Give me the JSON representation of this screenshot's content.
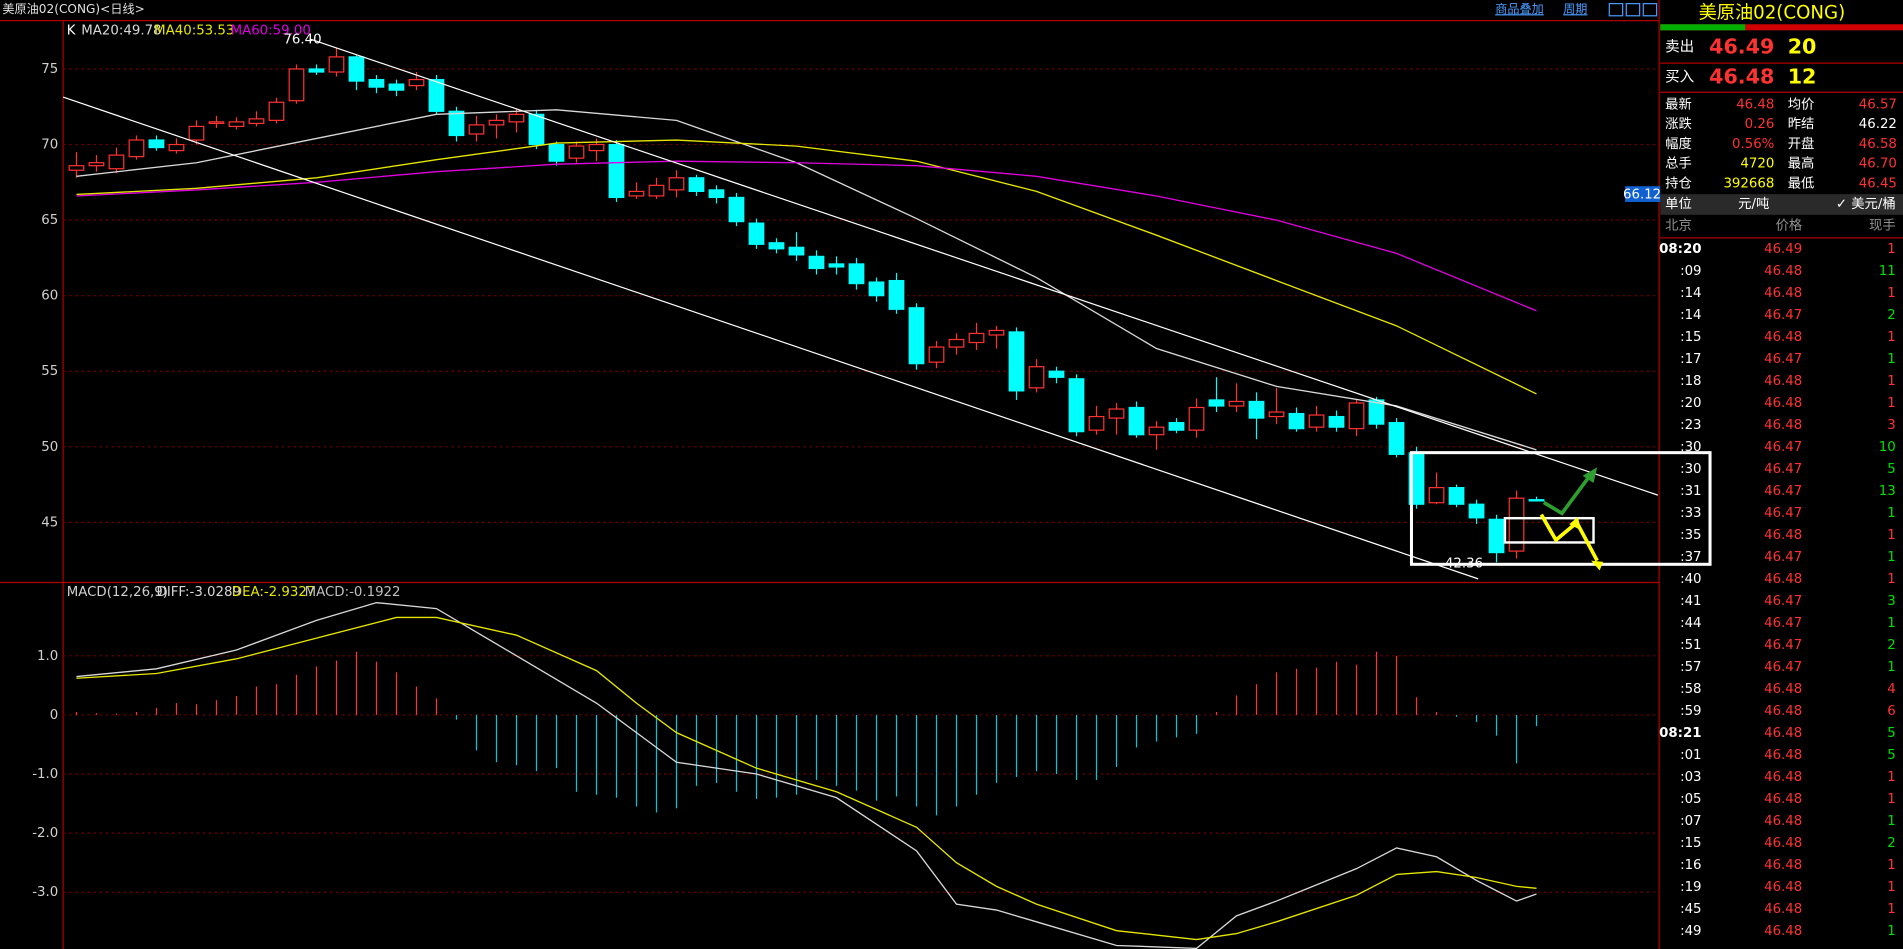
{
  "header": {
    "title": "美原油02(CONG)<日线>",
    "links": [
      "商品叠加",
      "周期"
    ]
  },
  "chart_data": [
    {
      "type": "candlestick",
      "label": "K",
      "up_color": "#ff3232",
      "down_color": "#00ffff",
      "open": [
        68.3,
        68.6,
        68.4,
        69.2,
        70.3,
        69.6,
        70.3,
        71.4,
        71.2,
        71.4,
        71.6,
        72.9,
        75.0,
        74.8,
        75.8,
        74.3,
        74.0,
        73.9,
        74.3,
        72.2,
        70.7,
        71.3,
        71.5,
        72.0,
        70.0,
        69.1,
        69.6,
        70.0,
        66.6,
        66.6,
        67.0,
        67.8,
        67.0,
        66.5,
        64.8,
        63.5,
        63.2,
        62.6,
        62.1,
        62.1,
        60.9,
        61.0,
        59.2,
        55.6,
        56.6,
        56.9,
        57.4,
        57.6,
        53.9,
        55.0,
        54.5,
        51.1,
        51.9,
        52.6,
        50.8,
        51.6,
        51.1,
        53.1,
        52.7,
        53.0,
        52.0,
        52.2,
        51.3,
        52.0,
        51.2,
        53.1,
        51.6,
        49.6,
        46.3,
        47.3,
        46.2,
        45.2,
        43.1,
        46.5
      ],
      "high": [
        69.5,
        69.3,
        69.8,
        70.6,
        70.6,
        70.4,
        71.6,
        71.9,
        71.8,
        72.2,
        73.1,
        75.3,
        75.3,
        76.4,
        75.9,
        74.6,
        74.3,
        74.8,
        74.6,
        72.5,
        71.9,
        72.0,
        72.4,
        72.3,
        70.2,
        70.2,
        70.4,
        70.3,
        67.5,
        67.8,
        68.3,
        68.0,
        67.3,
        66.8,
        65.1,
        63.8,
        64.2,
        63.0,
        62.6,
        62.5,
        61.2,
        61.5,
        59.5,
        57.0,
        57.5,
        58.2,
        58.0,
        57.9,
        55.8,
        55.3,
        54.8,
        52.7,
        52.9,
        53.0,
        51.7,
        51.9,
        53.2,
        54.6,
        54.2,
        53.6,
        53.9,
        52.6,
        52.7,
        52.4,
        53.1,
        53.3,
        51.9,
        50.0,
        48.3,
        47.5,
        46.5,
        45.5,
        47.1,
        46.7
      ],
      "low": [
        67.8,
        68.2,
        68.1,
        69.0,
        69.6,
        69.4,
        70.0,
        71.1,
        71.0,
        71.2,
        71.4,
        72.7,
        74.6,
        74.5,
        73.6,
        73.4,
        73.2,
        73.6,
        72.0,
        70.2,
        70.2,
        70.4,
        70.8,
        69.7,
        68.6,
        68.8,
        68.9,
        66.2,
        66.4,
        66.4,
        66.5,
        66.6,
        66.1,
        64.6,
        63.1,
        62.8,
        62.3,
        61.4,
        61.4,
        60.4,
        59.6,
        58.8,
        55.1,
        55.2,
        56.1,
        56.4,
        56.5,
        53.1,
        53.6,
        54.2,
        50.7,
        50.8,
        50.8,
        50.6,
        49.8,
        50.9,
        50.6,
        52.3,
        52.3,
        50.5,
        51.5,
        51.0,
        51.0,
        51.0,
        50.7,
        51.2,
        49.3,
        45.9,
        46.2,
        46.0,
        44.9,
        42.36,
        42.6,
        46.4
      ],
      "close": [
        68.6,
        68.8,
        69.3,
        70.3,
        69.8,
        70.0,
        71.2,
        71.5,
        71.5,
        71.7,
        72.8,
        75.0,
        74.8,
        75.8,
        74.2,
        73.8,
        73.6,
        74.3,
        72.2,
        70.6,
        71.3,
        71.6,
        72.0,
        70.0,
        68.9,
        69.9,
        70.0,
        66.5,
        66.9,
        67.3,
        67.8,
        66.9,
        66.5,
        64.9,
        63.4,
        63.1,
        62.7,
        61.8,
        61.9,
        60.8,
        60.0,
        59.1,
        55.5,
        56.6,
        57.1,
        57.5,
        57.7,
        53.7,
        55.3,
        54.6,
        51.0,
        52.0,
        52.5,
        50.8,
        51.3,
        51.1,
        52.6,
        52.7,
        53.0,
        51.9,
        52.3,
        51.2,
        52.1,
        51.3,
        52.9,
        51.5,
        49.5,
        46.2,
        47.3,
        46.2,
        45.3,
        43.0,
        46.6,
        46.48
      ],
      "series": [
        {
          "label": "MA20:49.78",
          "color": "#d8d8d8",
          "x": [
            0,
            6,
            12,
            18,
            24,
            30,
            36,
            42,
            48,
            54,
            60,
            66,
            73
          ],
          "values": [
            67.9,
            68.8,
            70.4,
            72.0,
            72.3,
            71.6,
            68.8,
            65.1,
            61.2,
            56.5,
            54.0,
            52.7,
            49.8
          ]
        },
        {
          "label": "MA40:53.53",
          "color": "#e6e600",
          "x": [
            0,
            6,
            12,
            18,
            24,
            30,
            36,
            42,
            48,
            54,
            60,
            66,
            73
          ],
          "values": [
            66.7,
            67.1,
            67.8,
            69.0,
            70.1,
            70.3,
            69.9,
            68.9,
            66.9,
            64.0,
            61.0,
            58.0,
            53.5
          ]
        },
        {
          "label": "MA60:59.00",
          "color": "#e000e0",
          "x": [
            0,
            6,
            12,
            18,
            24,
            30,
            36,
            42,
            48,
            54,
            60,
            66,
            73
          ],
          "values": [
            66.6,
            67.0,
            67.5,
            68.2,
            68.7,
            68.9,
            68.8,
            68.6,
            67.9,
            66.6,
            65.0,
            62.8,
            59.0
          ]
        }
      ],
      "annotations": [
        {
          "label": "76.40",
          "value": 76.4
        },
        {
          "label": "42.36",
          "value": 42.36
        }
      ],
      "price_badge": {
        "label": "66.12",
        "value": 66.12
      },
      "ylim": [
        41.1,
        78.2
      ],
      "yticks": [
        75,
        70,
        65,
        60,
        55,
        50,
        45
      ],
      "grid": true
    },
    {
      "type": "macd",
      "label": "MACD(12,26,9)",
      "diff_label": "DIFF:-3.0289",
      "dea_label": "DEA:-2.9327",
      "macd_label": "MACD:-0.1922",
      "histogram": [
        0.05,
        0.03,
        0.02,
        0.05,
        0.12,
        0.2,
        0.18,
        0.25,
        0.32,
        0.48,
        0.52,
        0.68,
        0.82,
        0.92,
        1.07,
        0.9,
        0.72,
        0.48,
        0.28,
        -0.08,
        -0.6,
        -0.8,
        -0.85,
        -0.95,
        -0.9,
        -1.3,
        -1.35,
        -1.4,
        -1.55,
        -1.65,
        -1.58,
        -1.2,
        -1.15,
        -1.3,
        -1.42,
        -1.4,
        -1.35,
        -1.1,
        -1.2,
        -1.28,
        -1.45,
        -1.38,
        -1.55,
        -1.7,
        -1.55,
        -1.35,
        -1.15,
        -1.05,
        -0.95,
        -1.0,
        -1.1,
        -1.1,
        -0.88,
        -0.55,
        -0.45,
        -0.38,
        -0.32,
        0.05,
        0.33,
        0.52,
        0.72,
        0.78,
        0.8,
        0.9,
        0.85,
        1.07,
        1.0,
        0.3,
        0.05,
        -0.03,
        -0.12,
        -0.35,
        -0.82,
        -0.19
      ],
      "up_color": "#ff3232",
      "down_color": "#00c8d8",
      "series": [
        {
          "color": "#d8d8d8",
          "x": [
            0,
            4,
            8,
            12,
            15,
            18,
            22,
            26,
            28,
            30,
            34,
            38,
            42,
            44,
            46,
            48,
            52,
            56,
            58,
            60,
            64,
            66,
            68,
            70,
            72,
            73
          ],
          "values": [
            0.65,
            0.78,
            1.1,
            1.6,
            1.9,
            1.8,
            1.0,
            0.2,
            -0.3,
            -0.8,
            -1.0,
            -1.4,
            -2.3,
            -3.2,
            -3.3,
            -3.5,
            -3.9,
            -3.95,
            -3.4,
            -3.15,
            -2.6,
            -2.25,
            -2.4,
            -2.8,
            -3.15,
            -3.0289
          ]
        },
        {
          "color": "#e6e600",
          "x": [
            0,
            4,
            8,
            12,
            16,
            18,
            22,
            26,
            28,
            30,
            34,
            38,
            42,
            44,
            46,
            48,
            52,
            56,
            58,
            60,
            64,
            66,
            68,
            70,
            72,
            73
          ],
          "values": [
            0.62,
            0.7,
            0.95,
            1.3,
            1.65,
            1.65,
            1.35,
            0.75,
            0.2,
            -0.3,
            -0.9,
            -1.3,
            -1.9,
            -2.5,
            -2.9,
            -3.2,
            -3.65,
            -3.8,
            -3.7,
            -3.5,
            -3.05,
            -2.7,
            -2.65,
            -2.75,
            -2.9,
            -2.9327
          ]
        }
      ],
      "ylim": [
        -3.96,
        2.22
      ],
      "yticks": [
        {
          "value": 1,
          "label": "1.0"
        },
        0,
        {
          "value": -1,
          "label": "-1.0"
        },
        {
          "value": -2,
          "label": "-2.0"
        },
        {
          "value": -3,
          "label": "-3.0"
        }
      ],
      "grid": true
    }
  ],
  "quote": {
    "title": "美原油02(CONG)",
    "sell": {
      "label": "卖出",
      "price": "46.49",
      "volume": "20"
    },
    "buy": {
      "label": "买入",
      "price": "46.48",
      "volume": "12"
    },
    "stats": [
      {
        "label1": "最新",
        "value1": "46.48",
        "color1": "#ff3232",
        "label2": "均价",
        "value2": "46.57",
        "color2": "#ff3232"
      },
      {
        "label1": "涨跌",
        "value1": "0.26",
        "color1": "#ff3232",
        "label2": "昨结",
        "value2": "46.22",
        "color2": "#ffffff"
      },
      {
        "label1": "幅度",
        "value1": "0.56%",
        "color1": "#ff3232",
        "label2": "开盘",
        "value2": "46.58",
        "color2": "#ff3232"
      },
      {
        "label1": "总手",
        "value1": "4720",
        "color1": "#ffff00",
        "label2": "最高",
        "value2": "46.70",
        "color2": "#ff3232"
      },
      {
        "label1": "持仓",
        "value1": "392668",
        "color1": "#ffff00",
        "label2": "最低",
        "value2": "46.45",
        "color2": "#ff3232"
      }
    ],
    "unit": {
      "label": "单位",
      "cny": "元/吨",
      "usd": "✓ 美元/桶"
    },
    "trades": {
      "headers": [
        "北京",
        "价格",
        "现手"
      ],
      "rows": [
        {
          "time": "08:20",
          "price": "46.49",
          "volume": "1",
          "color": "#ff3232"
        },
        {
          "time": ":09",
          "price": "46.48",
          "volume": "11",
          "color": "#00e000"
        },
        {
          "time": ":14",
          "price": "46.48",
          "volume": "1",
          "color": "#ff3232"
        },
        {
          "time": ":14",
          "price": "46.47",
          "volume": "2",
          "color": "#00e000"
        },
        {
          "time": ":15",
          "price": "46.48",
          "volume": "1",
          "color": "#ff3232"
        },
        {
          "time": ":17",
          "price": "46.47",
          "volume": "1",
          "color": "#00e000"
        },
        {
          "time": ":18",
          "price": "46.48",
          "volume": "1",
          "color": "#ff3232"
        },
        {
          "time": ":20",
          "price": "46.48",
          "volume": "1",
          "color": "#ff3232"
        },
        {
          "time": ":23",
          "price": "46.48",
          "volume": "3",
          "color": "#ff3232"
        },
        {
          "time": ":30",
          "price": "46.47",
          "volume": "10",
          "color": "#00e000"
        },
        {
          "time": ":30",
          "price": "46.47",
          "volume": "5",
          "color": "#00e000"
        },
        {
          "time": ":31",
          "price": "46.47",
          "volume": "13",
          "color": "#00e000"
        },
        {
          "time": ":33",
          "price": "46.47",
          "volume": "1",
          "color": "#00e000"
        },
        {
          "time": ":35",
          "price": "46.48",
          "volume": "1",
          "color": "#ff3232"
        },
        {
          "time": ":37",
          "price": "46.47",
          "volume": "1",
          "color": "#00e000"
        },
        {
          "time": ":40",
          "price": "46.48",
          "volume": "1",
          "color": "#ff3232"
        },
        {
          "time": ":41",
          "price": "46.47",
          "volume": "3",
          "color": "#00e000"
        },
        {
          "time": ":44",
          "price": "46.47",
          "volume": "1",
          "color": "#00e000"
        },
        {
          "time": ":51",
          "price": "46.47",
          "volume": "2",
          "color": "#00e000"
        },
        {
          "time": ":57",
          "price": "46.47",
          "volume": "1",
          "color": "#00e000"
        },
        {
          "time": ":58",
          "price": "46.48",
          "volume": "4",
          "color": "#ff3232"
        },
        {
          "time": ":59",
          "price": "46.48",
          "volume": "6",
          "color": "#ff3232"
        },
        {
          "time": "08:21",
          "price": "46.48",
          "volume": "5",
          "color": "#00e000"
        },
        {
          "time": ":01",
          "price": "46.48",
          "volume": "5",
          "color": "#00e000"
        },
        {
          "time": ":03",
          "price": "46.48",
          "volume": "1",
          "color": "#ff3232"
        },
        {
          "time": ":05",
          "price": "46.48",
          "volume": "1",
          "color": "#ff3232"
        },
        {
          "time": ":07",
          "price": "46.48",
          "volume": "1",
          "color": "#00e000"
        },
        {
          "time": ":15",
          "price": "46.48",
          "volume": "2",
          "color": "#00e000"
        },
        {
          "time": ":16",
          "price": "46.48",
          "volume": "1",
          "color": "#ff3232"
        },
        {
          "time": ":19",
          "price": "46.48",
          "volume": "1",
          "color": "#ff3232"
        },
        {
          "time": ":45",
          "price": "46.48",
          "volume": "1",
          "color": "#ff3232"
        },
        {
          "time": ":49",
          "price": "46.48",
          "volume": "1",
          "color": "#00e000"
        }
      ]
    }
  }
}
